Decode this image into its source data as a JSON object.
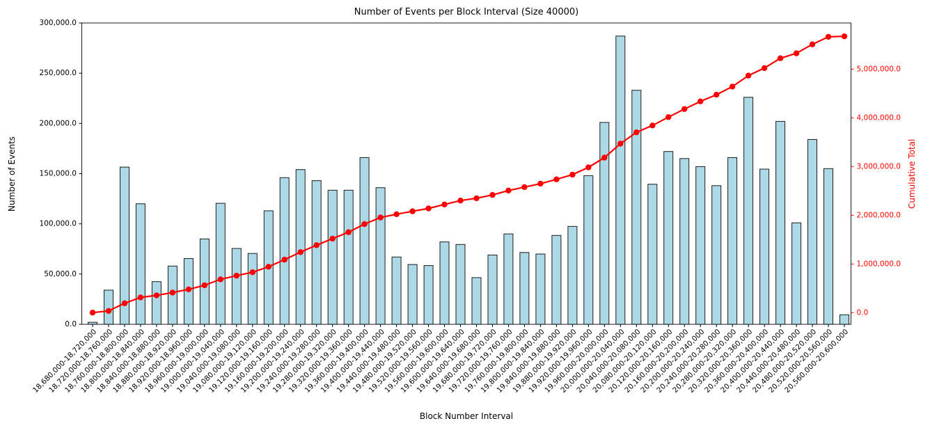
{
  "title": "Number of Events per Block Interval (Size 40000)",
  "chart_data": {
    "type": "bar",
    "subtype": "combo-bar-line",
    "title": "Number of Events per Block Interval (Size 40000)",
    "xlabel": "Block Number Interval",
    "ylabel_left": "Number of Events",
    "ylabel_right": "Cumulative Total",
    "grid": false,
    "legend_position": "none",
    "bar_color": "#add8e6",
    "bar_edge_color": "#1c1c1c",
    "line_color": "#ff0000",
    "categories": [
      "18,680,000-18,720,000",
      "18,720,000-18,760,000",
      "18,760,000-18,800,000",
      "18,800,000-18,840,000",
      "18,840,000-18,880,000",
      "18,880,000-18,920,000",
      "18,920,000-18,960,000",
      "18,960,000-19,000,000",
      "19,000,000-19,040,000",
      "19,040,000-19,080,000",
      "19,080,000-19,120,000",
      "19,120,000-19,160,000",
      "19,160,000-19,200,000",
      "19,200,000-19,240,000",
      "19,240,000-19,280,000",
      "19,280,000-19,320,000",
      "19,320,000-19,360,000",
      "19,360,000-19,400,000",
      "19,400,000-19,440,000",
      "19,440,000-19,480,000",
      "19,480,000-19,520,000",
      "19,520,000-19,560,000",
      "19,560,000-19,600,000",
      "19,600,000-19,640,000",
      "19,640,000-19,680,000",
      "19,680,000-19,720,000",
      "19,720,000-19,760,000",
      "19,760,000-19,800,000",
      "19,800,000-19,840,000",
      "19,840,000-19,880,000",
      "19,880,000-19,920,000",
      "19,920,000-19,960,000",
      "19,960,000-20,000,000",
      "20,000,000-20,040,000",
      "20,040,000-20,080,000",
      "20,080,000-20,120,000",
      "20,120,000-20,160,000",
      "20,160,000-20,200,000",
      "20,200,000-20,240,000",
      "20,240,000-20,280,000",
      "20,280,000-20,320,000",
      "20,320,000-20,360,000",
      "20,360,000-20,400,000",
      "20,400,000-20,440,000",
      "20,440,000-20,480,000",
      "20,480,000-20,520,000",
      "20,520,000-20,560,000",
      "20,560,000-20,600,000"
    ],
    "series": [
      {
        "name": "Number of Events",
        "type": "bar",
        "axis": "left",
        "color": "#add8e6",
        "edge_color": "#1c1c1c",
        "values": [
          2000,
          34000,
          156500,
          120000,
          42500,
          58000,
          65500,
          85000,
          120500,
          75500,
          70500,
          113000,
          146000,
          154000,
          143000,
          133500,
          133500,
          166000,
          136000,
          67000,
          59500,
          58500,
          82000,
          79500,
          46500,
          69000,
          90000,
          71500,
          70000,
          88500,
          97500,
          148000,
          201000,
          287000,
          233000,
          139500,
          172000,
          165000,
          157000,
          138000,
          166000,
          226000,
          154500,
          202000,
          101000,
          184000,
          155000,
          9500
        ]
      },
      {
        "name": "Cumulative Total",
        "type": "line",
        "axis": "right",
        "color": "#ff0000",
        "marker": "circle",
        "values": [
          2000,
          36000,
          192500,
          312500,
          355000,
          413000,
          478500,
          563500,
          684000,
          759500,
          830000,
          943000,
          1089000,
          1243000,
          1386000,
          1519500,
          1653000,
          1819000,
          1955000,
          2022000,
          2081500,
          2140000,
          2222000,
          2301500,
          2348000,
          2417000,
          2507000,
          2578500,
          2648500,
          2737000,
          2834500,
          2982500,
          3183500,
          3470500,
          3703500,
          3843000,
          4015000,
          4180000,
          4337000,
          4475000,
          4641000,
          4867000,
          5021500,
          5223500,
          5324500,
          5508500,
          5663500,
          5673000
        ]
      }
    ],
    "left_axis": {
      "label": "Number of Events",
      "color": "#000000",
      "range": [
        0,
        302000
      ],
      "tick_values": [
        0,
        50000,
        100000,
        150000,
        200000,
        250000,
        300000
      ],
      "tick_labels": [
        "0.0",
        "50,000.0",
        "100,000.0",
        "150,000.0",
        "200,000.0",
        "250,000.0",
        "300,000.0"
      ]
    },
    "right_axis": {
      "label": "Cumulative Total",
      "color": "#ff0000",
      "range": [
        -285000,
        5965000
      ],
      "tick_values": [
        0,
        1000000,
        2000000,
        3000000,
        4000000,
        5000000
      ],
      "tick_labels": [
        "0.0",
        "1,000,000.0",
        "2,000,000.0",
        "3,000,000.0",
        "4,000,000.0",
        "5,000,000.0"
      ]
    }
  }
}
